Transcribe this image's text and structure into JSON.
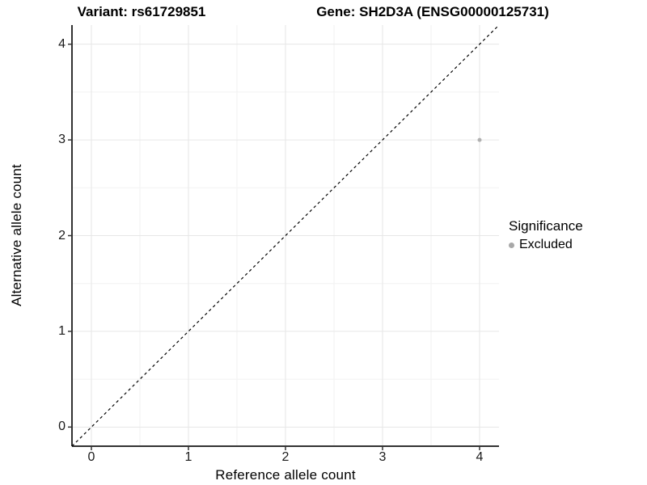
{
  "chart_data": {
    "type": "scatter",
    "title_left": "Variant: rs61729851",
    "title_right": "Gene: SH2D3A (ENSG00000125731)",
    "xlabel": "Reference allele count",
    "ylabel": "Alternative allele count",
    "xlim": [
      -0.2,
      4.2
    ],
    "ylim": [
      -0.2,
      4.2
    ],
    "x_ticks": [
      0,
      1,
      2,
      3,
      4
    ],
    "y_ticks": [
      0,
      1,
      2,
      3,
      4
    ],
    "grid": "major+minor",
    "series": [
      {
        "name": "Excluded",
        "color": "#b0b0b0",
        "point_radius": 2.5,
        "points": [
          {
            "x": 4,
            "y": 3
          }
        ]
      }
    ],
    "reference_line": {
      "type": "identity (y = x)",
      "style": "dashed",
      "color": "#000000",
      "from": [
        -0.2,
        -0.2
      ],
      "to": [
        4.2,
        4.2
      ]
    },
    "legend": {
      "title": "Significance",
      "position": "right",
      "items": [
        {
          "label": "Excluded",
          "color": "#a8a8a8"
        }
      ]
    },
    "style": {
      "background": "#ffffff",
      "grid_major_color": "#e6e6e6",
      "grid_minor_color": "#f2f2f2",
      "axis_line_color": "#333333",
      "tick_color": "#333333",
      "tick_label_color": "#1a1a1a"
    }
  }
}
